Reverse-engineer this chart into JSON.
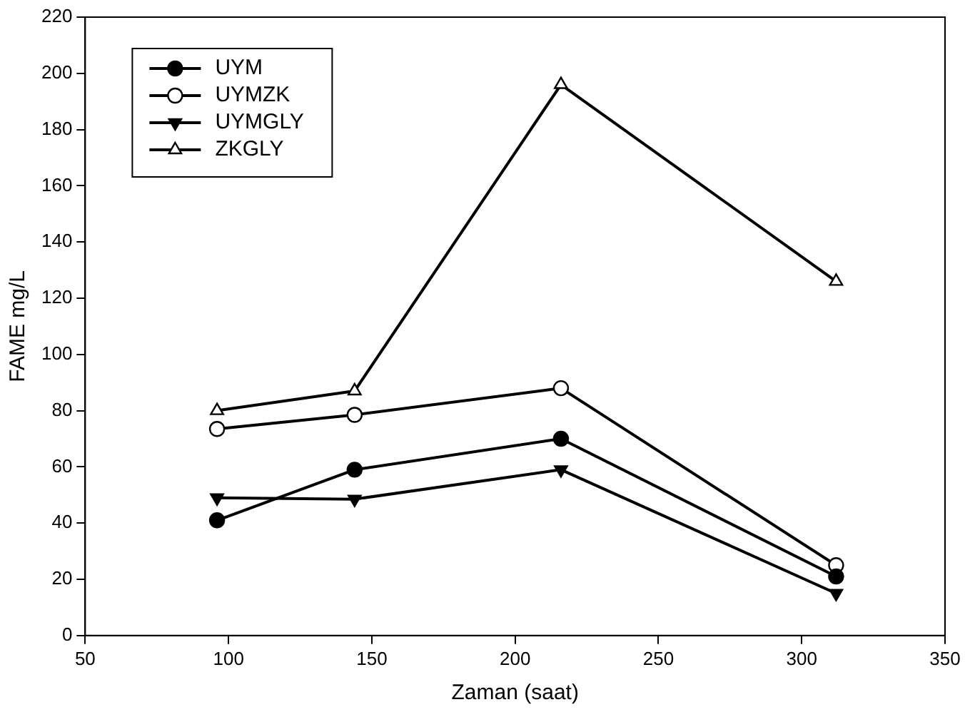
{
  "chart_data": {
    "type": "line",
    "xlabel": "Zaman (saat)",
    "ylabel": "FAME mg/L",
    "x": [
      96,
      144,
      216,
      312
    ],
    "series": [
      {
        "name": "UYM",
        "color": "#000000",
        "marker": "circle",
        "values": [
          41,
          59,
          70,
          21
        ]
      },
      {
        "name": "UYMZK",
        "color": "#000000",
        "marker": "circle-open",
        "values": [
          73.5,
          78.5,
          88,
          25
        ]
      },
      {
        "name": "UYMGLY",
        "color": "#000000",
        "marker": "triangle-down",
        "values": [
          49,
          48.5,
          59,
          15
        ]
      },
      {
        "name": "ZKGLY",
        "color": "#000000",
        "marker": "triangle-open",
        "values": [
          80,
          87,
          196,
          126
        ]
      }
    ],
    "xlim": [
      50,
      350
    ],
    "xticks": [
      50,
      100,
      150,
      200,
      250,
      300,
      350
    ],
    "ylim": [
      0,
      220
    ],
    "yticks": [
      0,
      20,
      40,
      60,
      80,
      100,
      120,
      140,
      160,
      180,
      200,
      220
    ],
    "grid": false,
    "legend": "top left",
    "line_style": "solid"
  }
}
